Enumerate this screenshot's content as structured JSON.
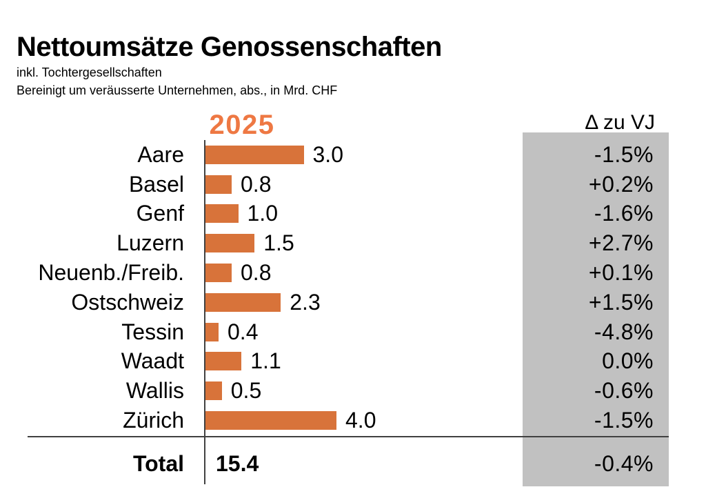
{
  "title": "Nettoumsätze Genossenschaften",
  "subtitle1": "inkl. Tochtergesellschaften",
  "subtitle2": "Bereinigt um veräusserte Unternehmen, abs., in Mrd. CHF",
  "columns": {
    "year": "2025",
    "delta": "Δ zu VJ"
  },
  "colors": {
    "bar": "#d8733a",
    "year_header": "#ee7843",
    "delta_background": "#c1c1c1",
    "line": "#404040",
    "text": "#000000"
  },
  "chart_data": {
    "type": "bar",
    "orientation": "horizontal",
    "title": "Nettoumsätze Genossenschaften",
    "subtitle": "inkl. Tochtergesellschaften — Bereinigt um veräusserte Unternehmen, abs., in Mrd. CHF",
    "year": "2025",
    "unit": "Mrd. CHF",
    "xlim": [
      0,
      4.2
    ],
    "grid": false,
    "legend": null,
    "categories": [
      "Aare",
      "Basel",
      "Genf",
      "Luzern",
      "Neuenb./Freib.",
      "Ostschweiz",
      "Tessin",
      "Waadt",
      "Wallis",
      "Zürich"
    ],
    "values": [
      3.0,
      0.8,
      1.0,
      1.5,
      0.8,
      2.3,
      0.4,
      1.1,
      0.5,
      4.0
    ],
    "value_labels": [
      "3.0",
      "0.8",
      "1.0",
      "1.5",
      "0.8",
      "2.3",
      "0.4",
      "1.1",
      "0.5",
      "4.0"
    ],
    "delta_header": "Δ zu VJ",
    "delta_labels": [
      "-1.5%",
      "+0.2%",
      "-1.6%",
      "+2.7%",
      "+0.1%",
      "+1.5%",
      "-4.8%",
      "0.0%",
      "-0.6%",
      "-1.5%"
    ],
    "total": {
      "label": "Total",
      "value": "15.4",
      "delta": "-0.4%"
    }
  }
}
